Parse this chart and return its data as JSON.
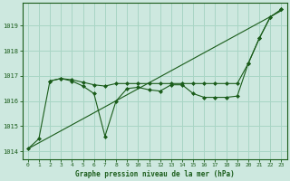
{
  "xlabel": "Graphe pression niveau de la mer (hPa)",
  "background_color": "#cde8df",
  "grid_color": "#a8d5c5",
  "line_color": "#1a5c1a",
  "xlim": [
    -0.5,
    23.5
  ],
  "ylim": [
    1013.7,
    1019.9
  ],
  "yticks": [
    1014,
    1015,
    1016,
    1017,
    1018,
    1019
  ],
  "xticks": [
    0,
    1,
    2,
    3,
    4,
    5,
    6,
    7,
    8,
    9,
    10,
    11,
    12,
    13,
    14,
    15,
    16,
    17,
    18,
    19,
    20,
    21,
    22,
    23
  ],
  "trend_x": [
    0,
    23
  ],
  "trend_y": [
    1014.1,
    1019.6
  ],
  "series1_x": [
    0,
    1,
    2,
    3,
    4,
    5,
    6,
    7,
    8,
    9,
    10,
    11,
    12,
    13,
    14,
    15,
    16,
    17,
    18,
    19,
    20,
    21,
    22,
    23
  ],
  "series1_y": [
    1014.1,
    1014.5,
    1016.8,
    1016.9,
    1016.8,
    1016.6,
    1016.3,
    1014.6,
    1016.0,
    1016.5,
    1016.55,
    1016.45,
    1016.4,
    1016.65,
    1016.65,
    1016.3,
    1016.15,
    1016.15,
    1016.15,
    1016.2,
    1017.5,
    1018.5,
    1019.35,
    1019.65
  ],
  "series2_x": [
    2,
    3,
    4,
    5,
    6,
    7,
    8,
    9,
    10,
    11,
    12,
    13,
    14,
    15,
    16,
    17,
    18,
    19,
    20,
    21,
    22,
    23
  ],
  "series2_y": [
    1016.8,
    1016.9,
    1016.85,
    1016.75,
    1016.65,
    1016.6,
    1016.7,
    1016.7,
    1016.7,
    1016.7,
    1016.7,
    1016.7,
    1016.7,
    1016.7,
    1016.7,
    1016.7,
    1016.7,
    1016.7,
    1017.5,
    1018.5,
    1019.35,
    1019.65
  ]
}
